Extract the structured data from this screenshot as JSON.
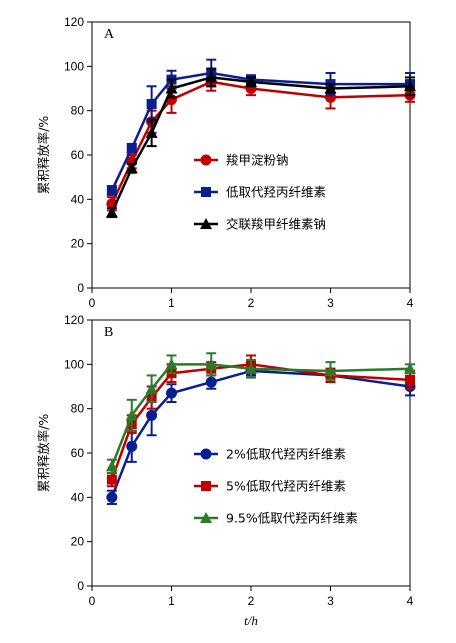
{
  "chart_data": [
    {
      "type": "line",
      "panel_label": "A",
      "ylabel": "累积释放率/%",
      "xlabel": "",
      "xlim": [
        0,
        4
      ],
      "ylim": [
        0,
        120
      ],
      "xticks": [
        "0",
        "1",
        "2",
        "3",
        "4"
      ],
      "yticks": [
        "0",
        "20",
        "40",
        "60",
        "80",
        "100",
        "120"
      ],
      "grid": false,
      "legend_position": "center",
      "x": [
        0.25,
        0.5,
        0.75,
        1,
        1.5,
        2,
        3,
        4
      ],
      "series": [
        {
          "name": "羧甲淀粉钠",
          "color": "#c00000",
          "marker": "circle",
          "values": [
            38,
            57,
            75,
            85,
            93,
            90,
            86,
            87
          ],
          "errors": [
            3,
            3,
            5,
            6,
            4,
            3,
            5,
            3
          ]
        },
        {
          "name": "低取代羟丙纤维素",
          "color": "#0a1f8f",
          "marker": "square",
          "values": [
            44,
            63,
            83,
            94,
            97,
            94,
            92,
            92
          ],
          "errors": [
            2,
            2,
            8,
            4,
            6,
            2,
            5,
            5
          ]
        },
        {
          "name": "交联羧甲纤维素钠",
          "color": "#000000",
          "marker": "triangle",
          "values": [
            34,
            54,
            70,
            90,
            95,
            93,
            90,
            91
          ],
          "errors": [
            2,
            2,
            6,
            4,
            4,
            2,
            2,
            4
          ]
        }
      ]
    },
    {
      "type": "line",
      "panel_label": "B",
      "ylabel": "累积释放率/%",
      "xlabel": "t/h",
      "xlim": [
        0,
        4
      ],
      "ylim": [
        0,
        120
      ],
      "xticks": [
        "0",
        "1",
        "2",
        "3",
        "4"
      ],
      "yticks": [
        "0",
        "20",
        "40",
        "60",
        "80",
        "100",
        "120"
      ],
      "grid": false,
      "legend_position": "center",
      "x": [
        0.25,
        0.5,
        0.75,
        1,
        1.5,
        2,
        3,
        4
      ],
      "series": [
        {
          "name": "2%低取代羟丙纤维素",
          "color": "#0a1f8f",
          "marker": "circle",
          "values": [
            40,
            63,
            77,
            87,
            92,
            97,
            95,
            90
          ],
          "errors": [
            3,
            7,
            9,
            4,
            3,
            2,
            3,
            4
          ]
        },
        {
          "name": "5%低取代羟丙纤维素",
          "color": "#c00000",
          "marker": "square",
          "values": [
            48,
            73,
            85,
            96,
            98,
            100,
            95,
            93
          ],
          "errors": [
            3,
            4,
            5,
            4,
            3,
            4,
            3,
            4
          ]
        },
        {
          "name": "9.5%低取代羟丙纤维素",
          "color": "#2a7a2a",
          "marker": "triangle",
          "values": [
            54,
            77,
            89,
            100,
            100,
            98,
            97,
            98
          ],
          "errors": [
            3,
            7,
            6,
            4,
            5,
            4,
            4,
            2
          ]
        }
      ]
    }
  ]
}
